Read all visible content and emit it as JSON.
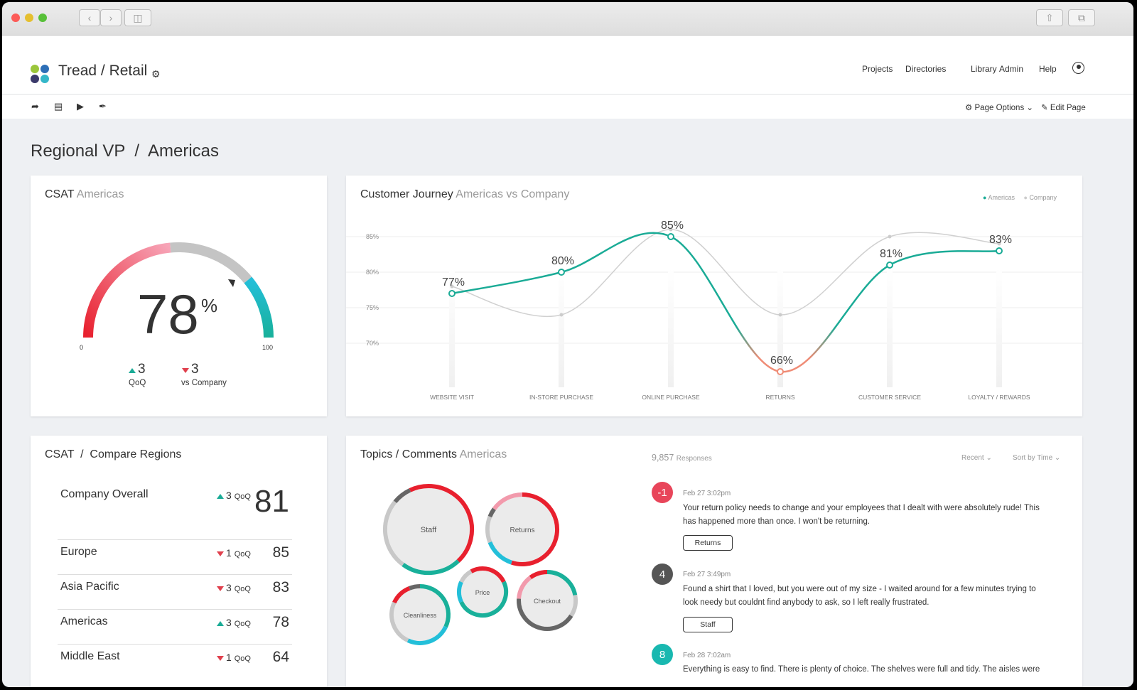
{
  "app": {
    "title": "Tread / Retail",
    "nav": [
      "Projects",
      "Directories",
      "Library",
      "Admin",
      "Help"
    ],
    "page_options": "Page Options",
    "edit_page": "Edit Page",
    "logo_colors": [
      "#9bc63b",
      "#2d6fb7",
      "#3b3a6b",
      "#35b7c9"
    ]
  },
  "page": {
    "title": "Regional VP  /  Americas"
  },
  "csat": {
    "title": "CSAT",
    "subtitle": "Americas",
    "value": "78",
    "unit": "%",
    "gauge_value": 78,
    "min": "0",
    "max": "100",
    "qoq_value": "3",
    "qoq_label": "QoQ",
    "vs_value": "3",
    "vs_label": "vs Company"
  },
  "journey": {
    "title": "Customer Journey",
    "subtitle": "Americas vs Company",
    "legend": [
      "Americas",
      "Company"
    ]
  },
  "chart_data": {
    "type": "line",
    "categories": [
      "WEBSITE VISIT",
      "IN-STORE PURCHASE",
      "ONLINE PURCHASE",
      "RETURNS",
      "CUSTOMER SERVICE",
      "LOYALTY / REWARDS"
    ],
    "series": [
      {
        "name": "Americas",
        "values": [
          77,
          80,
          85,
          66,
          81,
          83
        ],
        "color": "#1aab96",
        "labels": [
          "77%",
          "80%",
          "85%",
          "66%",
          "81%",
          "83%"
        ]
      },
      {
        "name": "Company",
        "values": [
          78,
          74,
          86,
          74,
          85,
          84
        ],
        "color": "#cccccc"
      }
    ],
    "yticks": [
      "85%",
      "80%",
      "75%",
      "70%"
    ],
    "ytick_values": [
      85,
      80,
      75,
      70
    ],
    "ylim": [
      65,
      87
    ],
    "grid": true,
    "legend_position": "top-right"
  },
  "compare": {
    "title": "CSAT  /  Compare Regions",
    "qoq_label": "QoQ",
    "rows": [
      {
        "name": "Company Overall",
        "delta": "3",
        "dir": "up",
        "score": "81"
      },
      {
        "name": "Europe",
        "delta": "1",
        "dir": "down",
        "score": "85"
      },
      {
        "name": "Asia Pacific",
        "delta": "3",
        "dir": "down",
        "score": "83"
      },
      {
        "name": "Americas",
        "delta": "3",
        "dir": "up",
        "score": "78"
      },
      {
        "name": "Middle East",
        "delta": "1",
        "dir": "down",
        "score": "64"
      }
    ]
  },
  "topics": {
    "title": "Topics / Comments",
    "subtitle": "Americas",
    "bubbles": [
      "Staff",
      "Returns",
      "Price",
      "Cleanliness",
      "Checkout"
    ],
    "responses_count": "9,857",
    "responses_label": "Responses",
    "filter_recent": "Recent",
    "filter_sort": "Sort by Time"
  },
  "comments": [
    {
      "score": "-1",
      "color": "#e8455a",
      "date": "Feb 27   3:02pm",
      "text": "Your return policy needs to change and your employees that I dealt with were absolutely rude!  This has happened more than once.  I won't be returning.",
      "tag": "Returns"
    },
    {
      "score": "4",
      "color": "#555555",
      "date": "Feb 27   3:49pm",
      "text": "Found a shirt that I loved, but you were out of my size - I waited around for a few minutes trying to look needy but couldnt find anybody to ask, so I left really frustrated.",
      "tag": "Staff"
    },
    {
      "score": "8",
      "color": "#19b8b0",
      "date": "Feb 28   7:02am",
      "text": "Everything is easy to find. There is plenty of choice. The shelves were full and tidy. The aisles were"
    }
  ]
}
